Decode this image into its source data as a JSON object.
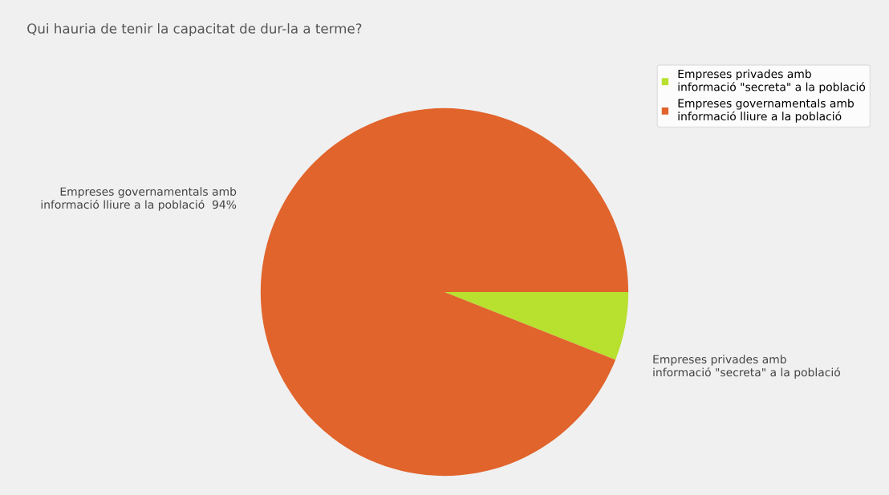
{
  "chart_data": {
    "type": "pie",
    "title": "Qui hauria de tenir la capacitat de dur-la a terme?",
    "categories": [
      "Empreses privades amb\ninformació \"secreta\" a la població",
      "Empreses governamentals amb\ninformació lliure a la població"
    ],
    "values": [
      6,
      94
    ],
    "colors": [
      "#b8e02e",
      "#e0642c"
    ],
    "value_labels": [
      null,
      "94%"
    ],
    "legend": "top right"
  }
}
